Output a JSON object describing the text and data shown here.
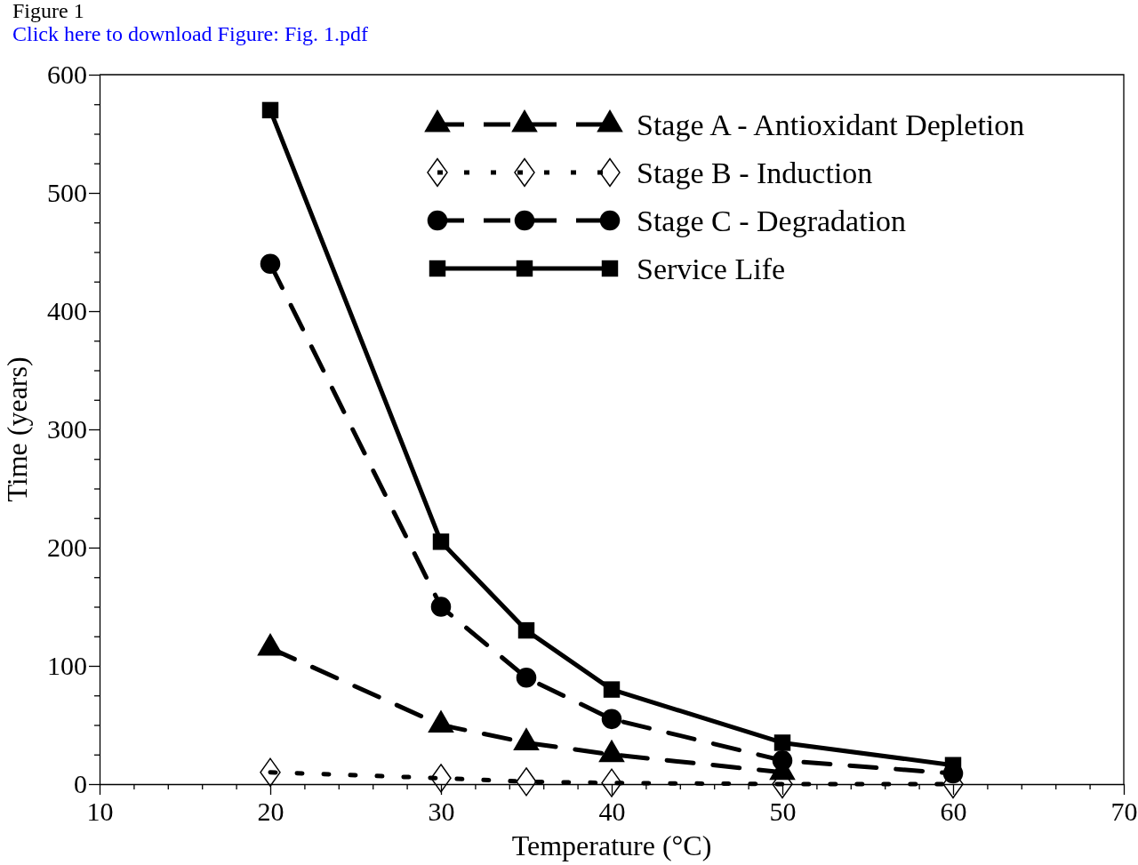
{
  "chart_data": {
    "type": "line",
    "xlabel": "Temperature (°C)",
    "ylabel": "Time (years)",
    "x": [
      20,
      30,
      35,
      40,
      50,
      60
    ],
    "xlim": [
      10,
      70
    ],
    "xticks": [
      10,
      {
        "value": 12,
        "label": null
      },
      {
        "value": 14,
        "label": null
      },
      {
        "value": 16,
        "label": null
      },
      {
        "value": 18,
        "label": null
      },
      20,
      {
        "value": 22,
        "label": null
      },
      {
        "value": 24,
        "label": null
      },
      {
        "value": 26,
        "label": null
      },
      {
        "value": 28,
        "label": null
      },
      30,
      {
        "value": 32,
        "label": null
      },
      {
        "value": 34,
        "label": null
      },
      {
        "value": 36,
        "label": null
      },
      {
        "value": 38,
        "label": null
      },
      40,
      {
        "value": 42,
        "label": null
      },
      {
        "value": 44,
        "label": null
      },
      {
        "value": 46,
        "label": null
      },
      {
        "value": 48,
        "label": null
      },
      50,
      {
        "value": 52,
        "label": null
      },
      {
        "value": 54,
        "label": null
      },
      {
        "value": 56,
        "label": null
      },
      {
        "value": 58,
        "label": null
      },
      60,
      {
        "value": 62,
        "label": null
      },
      {
        "value": 64,
        "label": null
      },
      {
        "value": 66,
        "label": null
      },
      {
        "value": 68,
        "label": null
      },
      70
    ],
    "ylim": [
      0,
      600
    ],
    "yticks": [
      0,
      {
        "value": 25,
        "label": null
      },
      {
        "value": 50,
        "label": null
      },
      {
        "value": 75,
        "label": null
      },
      100,
      {
        "value": 125,
        "label": null
      },
      {
        "value": 150,
        "label": null
      },
      {
        "value": 175,
        "label": null
      },
      200,
      {
        "value": 225,
        "label": null
      },
      {
        "value": 250,
        "label": null
      },
      {
        "value": 275,
        "label": null
      },
      300,
      {
        "value": 325,
        "label": null
      },
      {
        "value": 350,
        "label": null
      },
      {
        "value": 375,
        "label": null
      },
      400,
      {
        "value": 425,
        "label": null
      },
      {
        "value": 450,
        "label": null
      },
      {
        "value": 475,
        "label": null
      },
      500,
      {
        "value": 525,
        "label": null
      },
      {
        "value": 550,
        "label": null
      },
      {
        "value": 575,
        "label": null
      },
      600
    ],
    "grid": false,
    "legend": "top right",
    "series": [
      {
        "name": "Stage A - Antioxidant Depletion",
        "color": "#000000",
        "marker": "triangle",
        "line_style": "dashed",
        "values": [
          115,
          50,
          35,
          25,
          10,
          null
        ]
      },
      {
        "name": "Stage B - Induction",
        "color": "#000000",
        "marker": "diamond",
        "line_style": "dotted",
        "values": [
          10,
          5,
          2,
          1,
          0,
          0
        ]
      },
      {
        "name": "Stage C - Degradation",
        "color": "#000000",
        "marker": "circle",
        "line_style": "dashed",
        "values": [
          440,
          150,
          90,
          55,
          20,
          9
        ]
      },
      {
        "name": "Service Life",
        "color": "#000000",
        "marker": "square",
        "line_style": "solid",
        "values": [
          570,
          205,
          130,
          80,
          35,
          16
        ]
      }
    ],
    "annotations": [
      "Figure 1",
      "Click here to download Figure: Fig. 1.pdf"
    ]
  }
}
